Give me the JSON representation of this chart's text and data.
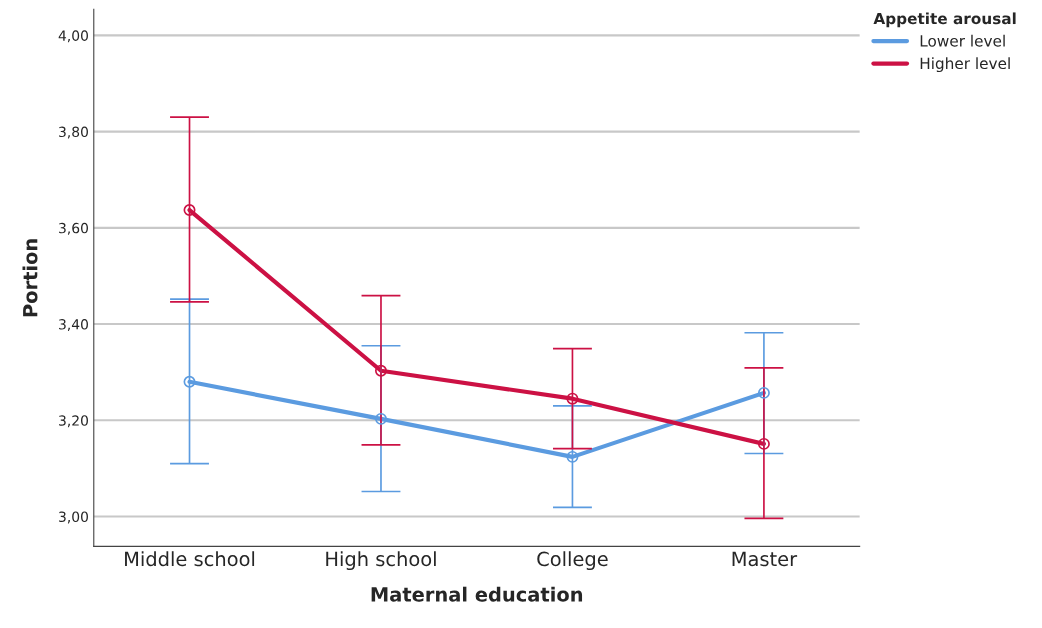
{
  "chart_data": {
    "type": "line",
    "xlabel": "Maternal education",
    "ylabel": "Portion",
    "legend_title": "Appetite arousal",
    "categories": [
      "Middle school",
      "High school",
      "College",
      "Master"
    ],
    "series": [
      {
        "name": "Lower level",
        "color": "#5b9be0",
        "values": [
          3.28,
          3.203,
          3.124,
          3.257
        ],
        "errors": [
          [
            3.11,
            3.452
          ],
          [
            3.052,
            3.355
          ],
          [
            3.019,
            3.23
          ],
          [
            3.131,
            3.382
          ]
        ]
      },
      {
        "name": "Higher level",
        "color": "#cc1144",
        "values": [
          3.637,
          3.303,
          3.245,
          3.151
        ],
        "errors": [
          [
            3.446,
            3.83
          ],
          [
            3.149,
            3.459
          ],
          [
            3.141,
            3.349
          ],
          [
            2.996,
            3.309
          ]
        ]
      }
    ],
    "ylim": [
      2.938,
      4.054
    ],
    "yticks": [
      {
        "value": 3.0,
        "label": "3,00"
      },
      {
        "value": 3.2,
        "label": "3,20"
      },
      {
        "value": 3.4,
        "label": "3,40"
      },
      {
        "value": 3.6,
        "label": "3,60"
      },
      {
        "value": 3.8,
        "label": "3,80"
      },
      {
        "value": 4.0,
        "label": "4,00"
      }
    ],
    "grid": "y",
    "legend": "top right",
    "marker": "circle",
    "line_style": "solid"
  }
}
